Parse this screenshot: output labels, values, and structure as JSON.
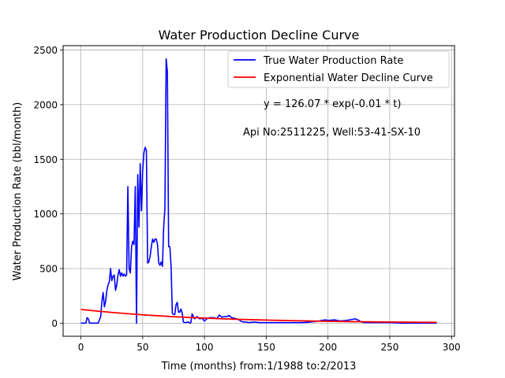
{
  "chart_data": {
    "type": "line",
    "title": "Water Production Decline Curve",
    "xlabel": "Time (months) from:1/1988 to:2/2013",
    "ylabel": "Water Production Rate (bbl/month)",
    "xlim": [
      -14.4,
      302.4
    ],
    "ylim": [
      -120,
      2540
    ],
    "xticks": [
      0,
      50,
      100,
      150,
      200,
      250,
      300
    ],
    "yticks": [
      0,
      500,
      1000,
      1500,
      2000,
      2500
    ],
    "xtick_labels": [
      "0",
      "50",
      "100",
      "150",
      "200",
      "250",
      "300"
    ],
    "ytick_labels": [
      "0",
      "500",
      "1000",
      "1500",
      "2000",
      "2500"
    ],
    "grid": true,
    "legend_position": "top-right",
    "annotations": [
      "y = 126.07 * exp(-0.01 * t)",
      "Api No:2511225, Well:53-41-SX-10"
    ],
    "series": [
      {
        "name": "True Water Production Rate",
        "color": "#0000ff",
        "x": [
          0,
          2,
          4,
          5,
          6,
          7,
          8,
          10,
          12,
          14,
          15,
          16,
          17,
          18,
          19,
          20,
          21,
          22,
          23,
          24,
          25,
          26,
          27,
          28,
          29,
          30,
          31,
          32,
          33,
          34,
          35,
          36,
          37,
          38,
          39,
          40,
          41,
          42,
          43,
          44,
          45,
          46,
          47,
          48,
          49,
          50,
          51,
          52,
          53,
          54,
          55,
          56,
          57,
          58,
          59,
          60,
          61,
          62,
          63,
          64,
          65,
          66,
          67,
          68,
          69,
          70,
          71,
          72,
          73,
          74,
          75,
          76,
          77,
          78,
          79,
          80,
          81,
          82,
          83,
          84,
          85,
          86,
          87,
          88,
          89,
          90,
          92,
          94,
          96,
          98,
          100,
          101,
          102,
          104,
          106,
          108,
          110,
          112,
          114,
          116,
          118,
          120,
          122,
          124,
          126,
          128,
          130,
          132,
          134,
          136,
          140,
          145,
          150,
          160,
          170,
          180,
          190,
          195,
          198,
          200,
          205,
          210,
          215,
          220,
          222,
          225,
          227,
          230,
          240,
          250,
          260,
          270,
          280,
          288
        ],
        "y": [
          0,
          0,
          0,
          50,
          40,
          0,
          0,
          0,
          0,
          0,
          30,
          60,
          200,
          280,
          150,
          200,
          300,
          350,
          380,
          500,
          390,
          430,
          440,
          300,
          350,
          440,
          490,
          430,
          460,
          430,
          450,
          430,
          440,
          1250,
          500,
          460,
          700,
          750,
          720,
          1250,
          0,
          1360,
          880,
          1460,
          1030,
          1400,
          1560,
          1610,
          1580,
          550,
          560,
          610,
          700,
          770,
          740,
          770,
          770,
          720,
          550,
          530,
          560,
          520,
          880,
          1050,
          2420,
          2300,
          700,
          700,
          520,
          90,
          80,
          80,
          170,
          190,
          100,
          100,
          130,
          90,
          10,
          5,
          5,
          10,
          10,
          0,
          5,
          85,
          40,
          60,
          40,
          45,
          20,
          30,
          40,
          50,
          50,
          50,
          40,
          75,
          55,
          60,
          60,
          70,
          50,
          45,
          40,
          30,
          15,
          10,
          10,
          5,
          10,
          5,
          5,
          5,
          5,
          5,
          15,
          25,
          30,
          25,
          30,
          20,
          25,
          35,
          40,
          25,
          10,
          5,
          5,
          5,
          0,
          0,
          0,
          0
        ]
      },
      {
        "name": "Exponential Water Decline Curve",
        "color": "#ff0000",
        "model": {
          "a": 126.07,
          "b": -0.01,
          "t_start": 0,
          "t_end": 288
        }
      }
    ]
  }
}
